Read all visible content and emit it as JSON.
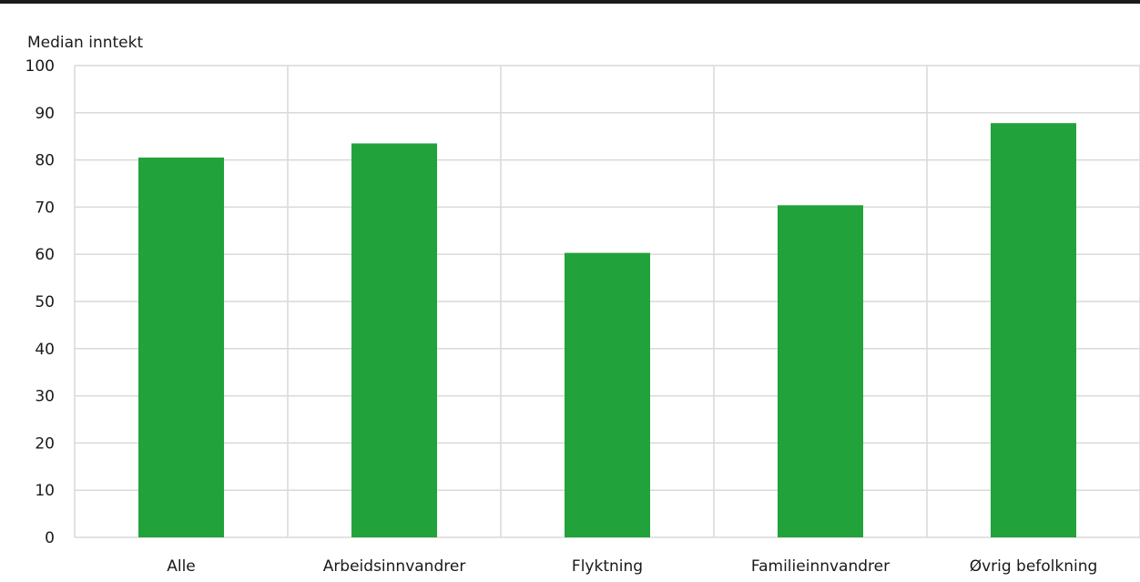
{
  "chart_data": {
    "type": "bar",
    "title": "",
    "ylabel": "Median inntekt",
    "xlabel": "",
    "categories": [
      "Alle",
      "Arbeidsinnvandrer",
      "Flyktning",
      "Familieinnvandrer",
      "Øvrig befolkning"
    ],
    "values": [
      80.5,
      83.5,
      60.3,
      70.4,
      87.8
    ],
    "ylim": [
      0,
      100
    ],
    "yticks": [
      0,
      10,
      20,
      30,
      40,
      50,
      60,
      70,
      80,
      90,
      100
    ],
    "grid": true,
    "bar_color": "#22a23b",
    "grid_color": "#d9d9d9"
  }
}
